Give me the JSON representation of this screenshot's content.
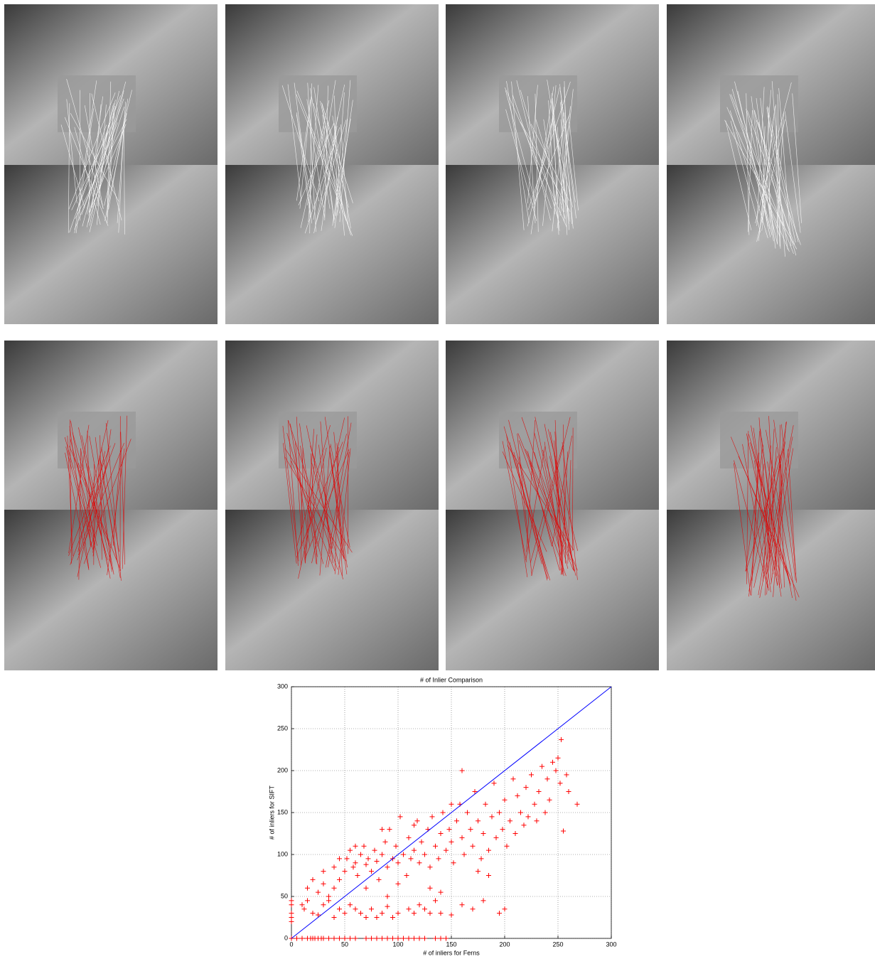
{
  "chart_data": {
    "type": "scatter",
    "title": "# of Inlier Comparison",
    "x_label": "# of inliers for Ferns",
    "y_label": "# of inliers for SIFT",
    "xlim": [
      0,
      300
    ],
    "ylim": [
      0,
      300
    ],
    "xticks": [
      0,
      50,
      100,
      150,
      200,
      250,
      300
    ],
    "yticks": [
      0,
      50,
      100,
      150,
      200,
      250,
      300
    ],
    "grid": true,
    "series": [
      {
        "type": "scatter",
        "color": "#ff0000",
        "x": [
          0,
          5,
          10,
          15,
          18,
          20,
          22,
          25,
          28,
          30,
          35,
          40,
          45,
          50,
          55,
          60,
          70,
          75,
          80,
          85,
          90,
          95,
          100,
          105,
          110,
          115,
          120,
          125,
          135,
          140,
          145,
          0,
          0,
          0,
          0,
          0,
          10,
          12,
          15,
          20,
          25,
          30,
          35,
          40,
          45,
          50,
          55,
          60,
          65,
          70,
          75,
          80,
          85,
          90,
          95,
          100,
          110,
          115,
          120,
          125,
          130,
          135,
          140,
          150,
          160,
          170,
          180,
          195,
          200,
          15,
          20,
          25,
          30,
          35,
          40,
          45,
          50,
          52,
          55,
          58,
          60,
          62,
          65,
          68,
          70,
          72,
          75,
          78,
          80,
          82,
          85,
          88,
          90,
          92,
          95,
          98,
          100,
          102,
          105,
          108,
          110,
          112,
          115,
          118,
          120,
          122,
          125,
          128,
          130,
          132,
          135,
          138,
          140,
          142,
          145,
          148,
          150,
          152,
          155,
          158,
          160,
          162,
          165,
          168,
          170,
          172,
          175,
          178,
          180,
          182,
          185,
          188,
          190,
          192,
          195,
          198,
          200,
          202,
          205,
          208,
          210,
          212,
          215,
          218,
          220,
          222,
          225,
          228,
          230,
          232,
          235,
          238,
          240,
          242,
          245,
          248,
          250,
          252,
          253,
          255,
          258,
          260,
          268,
          160,
          150,
          115,
          85,
          60,
          40,
          30,
          45,
          70,
          90,
          100,
          130,
          140,
          175,
          185
        ],
        "values": [
          0,
          0,
          0,
          0,
          0,
          0,
          0,
          0,
          0,
          0,
          0,
          0,
          0,
          0,
          0,
          0,
          0,
          0,
          0,
          0,
          0,
          0,
          0,
          0,
          0,
          0,
          0,
          0,
          0,
          0,
          0,
          25,
          30,
          40,
          45,
          20,
          40,
          35,
          45,
          30,
          28,
          40,
          45,
          25,
          35,
          30,
          40,
          35,
          30,
          25,
          35,
          25,
          30,
          38,
          25,
          30,
          35,
          30,
          40,
          35,
          30,
          45,
          30,
          28,
          40,
          35,
          45,
          30,
          35,
          60,
          70,
          55,
          65,
          50,
          60,
          70,
          80,
          95,
          105,
          85,
          90,
          75,
          100,
          110,
          88,
          95,
          80,
          105,
          92,
          70,
          100,
          115,
          85,
          130,
          95,
          110,
          90,
          145,
          100,
          75,
          120,
          95,
          105,
          140,
          90,
          115,
          100,
          130,
          85,
          145,
          110,
          95,
          125,
          150,
          105,
          130,
          115,
          90,
          140,
          160,
          120,
          100,
          150,
          130,
          110,
          175,
          140,
          95,
          125,
          160,
          105,
          145,
          185,
          120,
          150,
          130,
          165,
          110,
          140,
          190,
          125,
          170,
          150,
          135,
          180,
          145,
          195,
          160,
          140,
          175,
          205,
          150,
          190,
          165,
          210,
          200,
          215,
          185,
          237,
          128,
          195,
          175,
          160,
          200,
          160,
          135,
          130,
          110,
          85,
          80,
          95,
          60,
          50,
          65,
          60,
          55,
          80,
          75
        ]
      },
      {
        "type": "line",
        "color": "#0000ff",
        "x": [
          0,
          300
        ],
        "values": [
          0,
          300
        ]
      }
    ]
  }
}
